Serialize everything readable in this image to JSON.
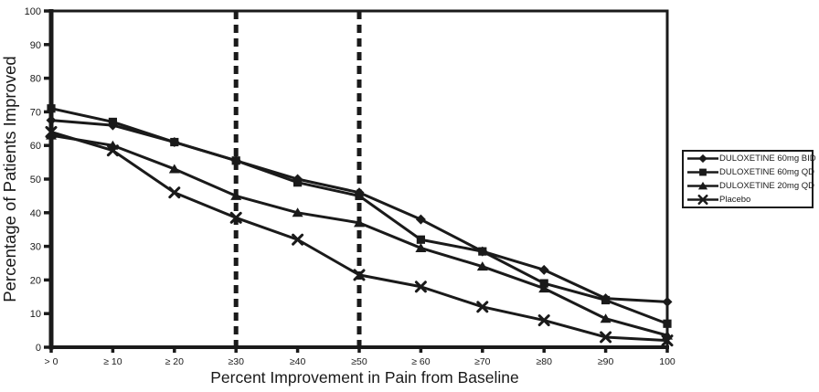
{
  "figure": {
    "background_color": "#ffffff",
    "line_color": "#1a1a1a"
  },
  "chart_data": {
    "type": "line",
    "title": "",
    "xlabel": "Percent Improvement in Pain from Baseline",
    "ylabel": "Percentage of Patients Improved",
    "categories": [
      "> 0",
      "≥ 10",
      "≥ 20",
      "≥30",
      "≥40",
      "≥50",
      "≥ 60",
      "≥70",
      "≥80",
      "≥90",
      "100"
    ],
    "y_ticks": [
      0,
      10,
      20,
      30,
      40,
      50,
      60,
      70,
      80,
      90,
      100
    ],
    "ylim": [
      0,
      100
    ],
    "grid": false,
    "legend_position": "right-outside",
    "reference_lines_at_category_indexes": [
      3,
      5
    ],
    "reference_line_style": "dashed-vertical",
    "series": [
      {
        "name": "DULOXETINE 60mg BID",
        "marker": "diamond",
        "values": [
          67.5,
          66,
          61,
          55.5,
          50,
          46,
          38,
          28.5,
          23,
          14.5,
          13.5
        ]
      },
      {
        "name": "DULOXETINE 60mg QD",
        "marker": "square",
        "values": [
          71,
          67,
          61,
          55.5,
          49,
          45,
          32,
          28.5,
          19,
          14,
          7
        ]
      },
      {
        "name": "DULOXETINE 20mg QD",
        "marker": "triangle",
        "values": [
          63,
          60,
          53,
          45,
          40,
          37,
          29.5,
          24,
          17.5,
          8.5,
          3.5
        ]
      },
      {
        "name": "Placebo",
        "marker": "x",
        "values": [
          64,
          58.5,
          46,
          38.5,
          32,
          21.5,
          18,
          12,
          8,
          3,
          2
        ]
      }
    ]
  }
}
